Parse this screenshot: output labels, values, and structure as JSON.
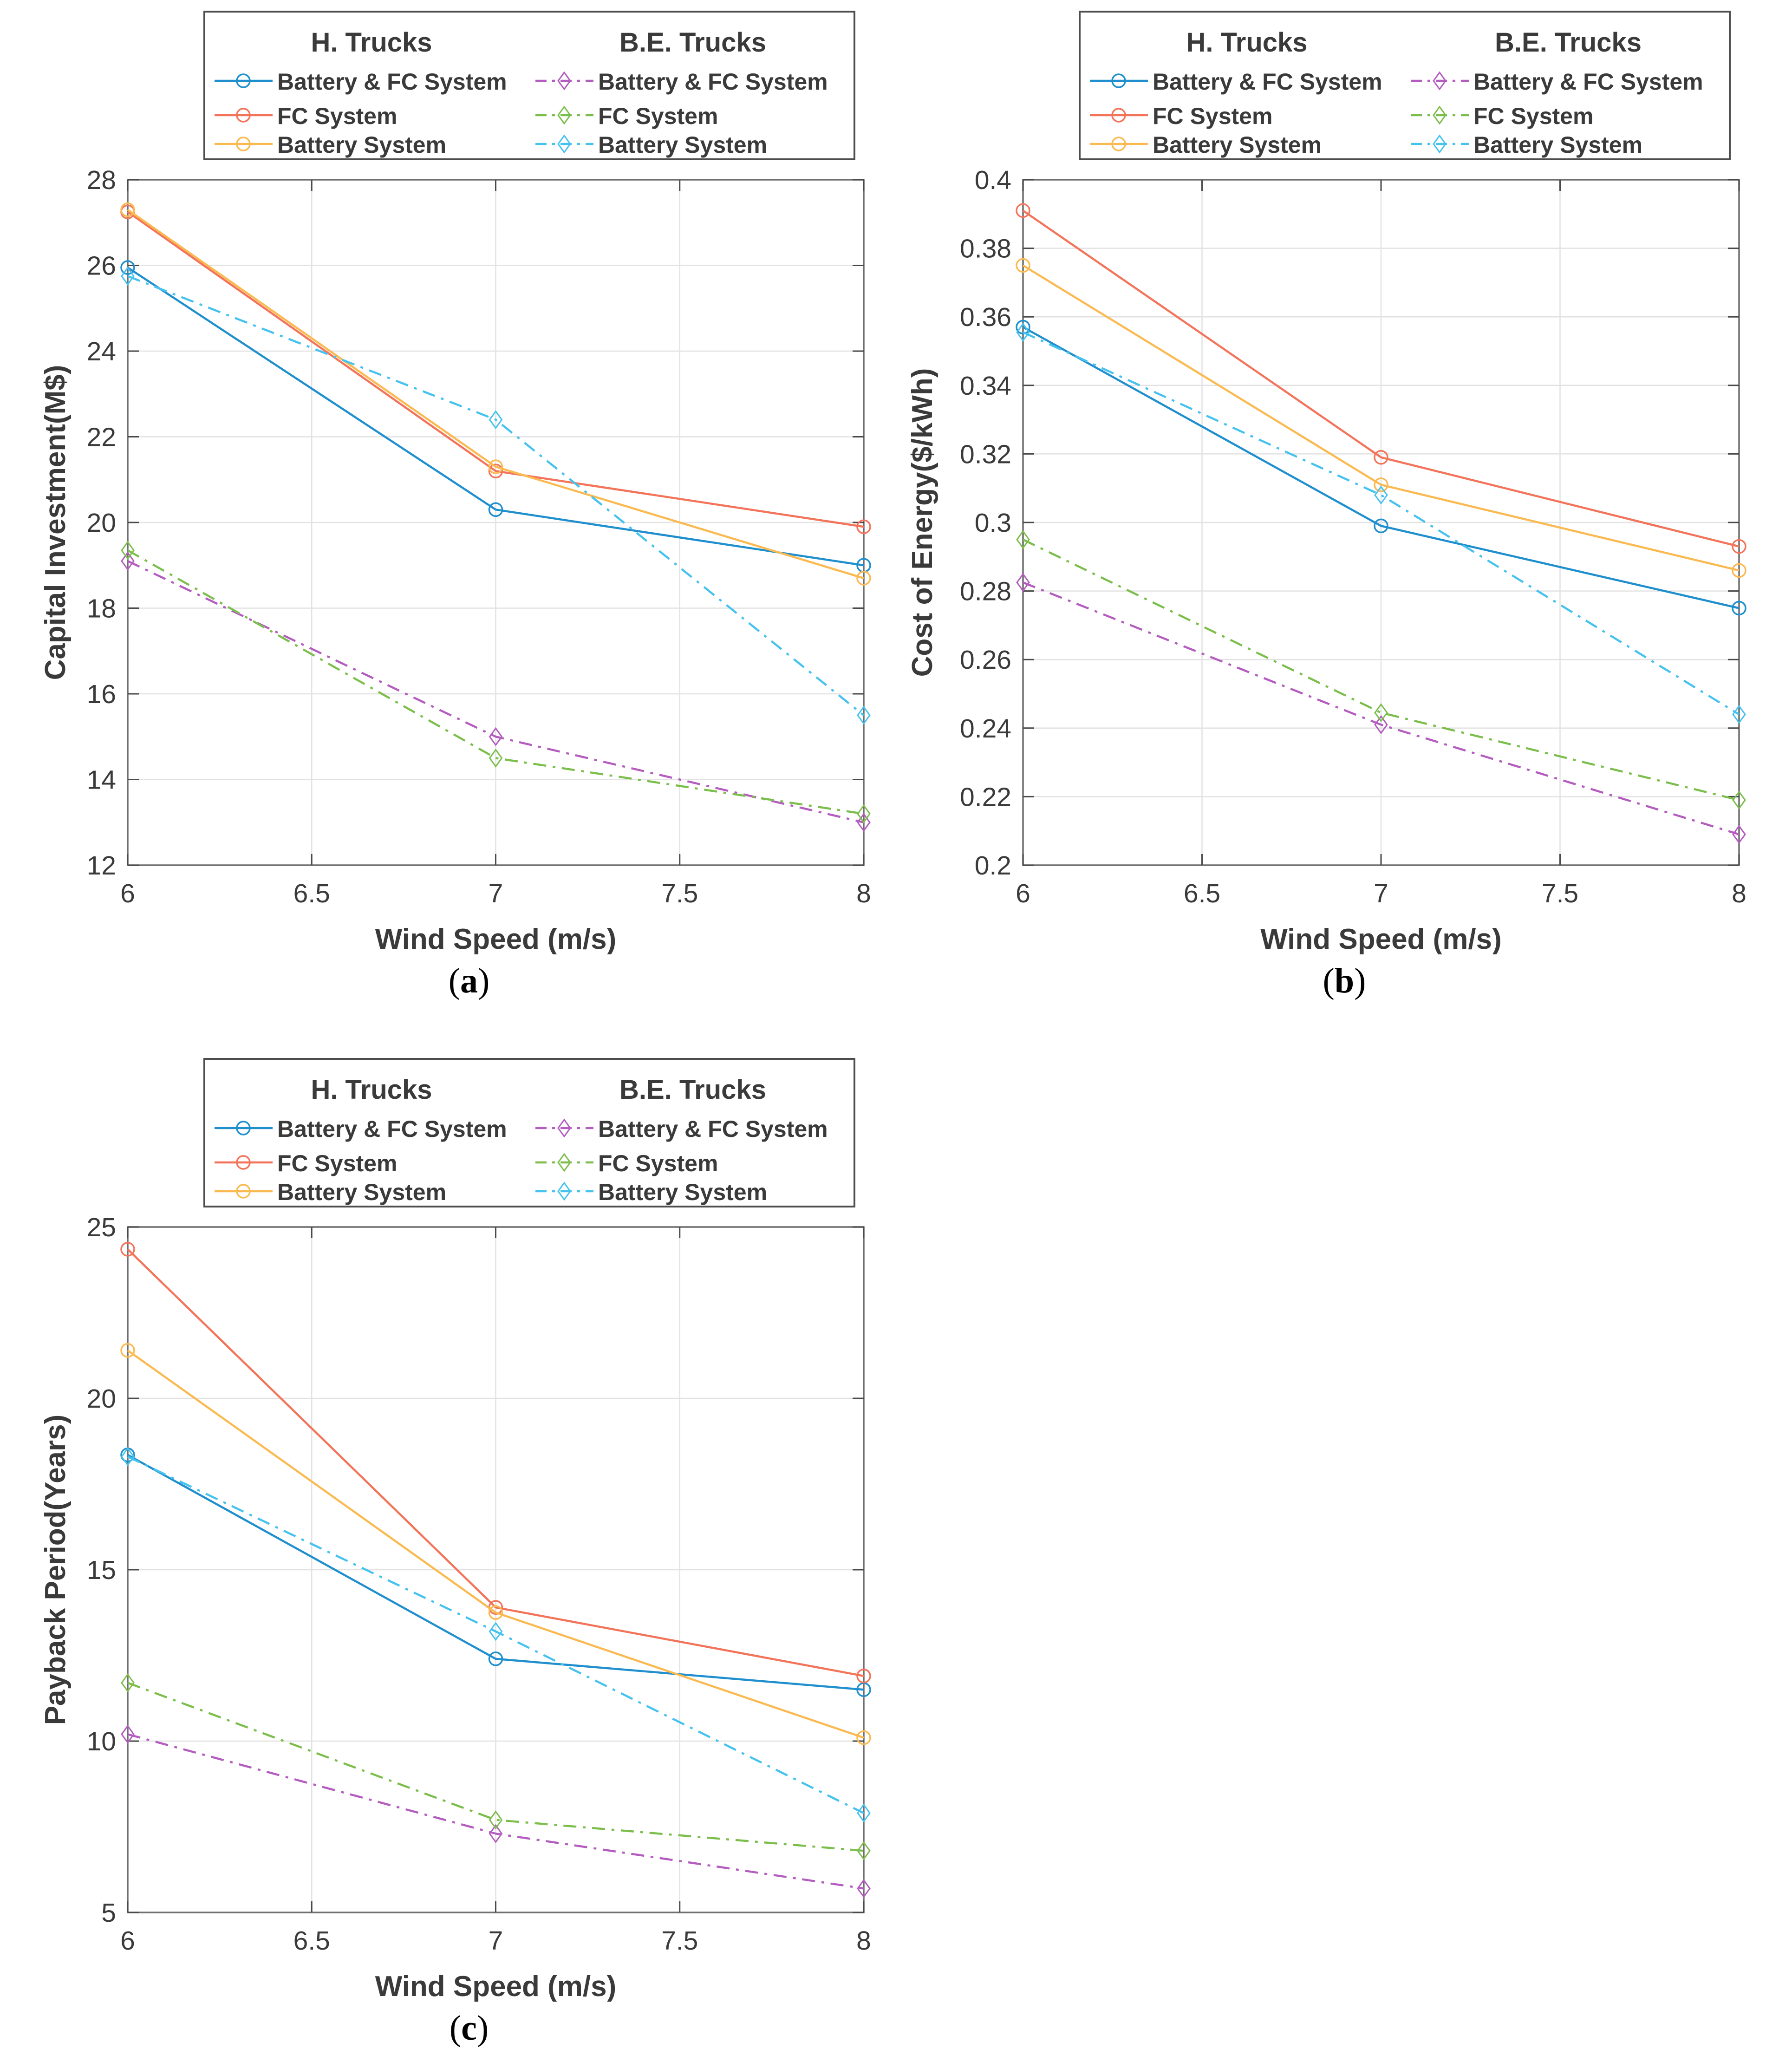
{
  "colors": {
    "background": "#FFFFFF",
    "grid": "#E2E2E2",
    "box": "#6F6F6F",
    "tick": "#4A4A4A",
    "text": "#3A3A3A",
    "legend_border": "#4D4D4D",
    "h_blue": "#1F8FCE",
    "h_coral": "#F3745A",
    "h_yellow": "#FBBA51",
    "be_purple": "#B45CBF",
    "be_green": "#7CBE4B",
    "be_cyan": "#45C2EE"
  },
  "legend": {
    "headers": [
      "H. Trucks",
      "B.E. Trucks"
    ],
    "items": [
      "Battery & FC System",
      "FC System",
      "Battery System"
    ]
  },
  "chart_data": [
    {
      "id": "a",
      "type": "line",
      "caption": "(a)",
      "xlabel": "Wind Speed (m/s)",
      "ylabel": "Capital Investment(M$)",
      "xlim": [
        6,
        8
      ],
      "ylim": [
        12,
        28
      ],
      "xticks": [
        6,
        6.5,
        7,
        7.5,
        8
      ],
      "xtick_labels": [
        "6",
        "6.5",
        "7",
        "7.5",
        "8"
      ],
      "yticks": [
        12,
        14,
        16,
        18,
        20,
        22,
        24,
        26,
        28
      ],
      "ytick_labels": [
        "12",
        "14",
        "16",
        "18",
        "20",
        "22",
        "24",
        "26",
        "28"
      ],
      "grid": true,
      "legend_position": "top",
      "x": [
        6,
        7,
        8
      ],
      "series": [
        {
          "group": "H. Trucks",
          "name": "Battery & FC System",
          "color": "#1F8FCE",
          "line": "solid",
          "marker": "circle",
          "values": [
            25.95,
            20.3,
            19.0
          ]
        },
        {
          "group": "H. Trucks",
          "name": "FC System",
          "color": "#F3745A",
          "line": "solid",
          "marker": "circle",
          "values": [
            27.25,
            21.2,
            19.9
          ]
        },
        {
          "group": "H. Trucks",
          "name": "Battery System",
          "color": "#FBBA51",
          "line": "solid",
          "marker": "circle",
          "values": [
            27.3,
            21.3,
            18.7
          ]
        },
        {
          "group": "B.E. Trucks",
          "name": "Battery & FC System",
          "color": "#B45CBF",
          "line": "dashdot",
          "marker": "diamond",
          "values": [
            19.1,
            15.0,
            13.0
          ]
        },
        {
          "group": "B.E. Trucks",
          "name": "FC System",
          "color": "#7CBE4B",
          "line": "dashdot",
          "marker": "diamond",
          "values": [
            19.35,
            14.5,
            13.2
          ]
        },
        {
          "group": "B.E. Trucks",
          "name": "Battery System",
          "color": "#45C2EE",
          "line": "dashdot",
          "marker": "diamond",
          "values": [
            25.75,
            22.4,
            15.5
          ]
        }
      ]
    },
    {
      "id": "b",
      "type": "line",
      "caption": "(b)",
      "xlabel": "Wind Speed (m/s)",
      "ylabel": "Cost of Energy($/kWh)",
      "xlim": [
        6,
        8
      ],
      "ylim": [
        0.2,
        0.4
      ],
      "xticks": [
        6,
        6.5,
        7,
        7.5,
        8
      ],
      "xtick_labels": [
        "6",
        "6.5",
        "7",
        "7.5",
        "8"
      ],
      "yticks": [
        0.2,
        0.22,
        0.24,
        0.26,
        0.28,
        0.3,
        0.32,
        0.34,
        0.36,
        0.38,
        0.4
      ],
      "ytick_labels": [
        "0.2",
        "0.22",
        "0.24",
        "0.26",
        "0.28",
        "0.3",
        "0.32",
        "0.34",
        "0.36",
        "0.38",
        "0.4"
      ],
      "grid": true,
      "legend_position": "top",
      "x": [
        6,
        7,
        8
      ],
      "series": [
        {
          "group": "H. Trucks",
          "name": "Battery & FC System",
          "color": "#1F8FCE",
          "line": "solid",
          "marker": "circle",
          "values": [
            0.357,
            0.299,
            0.275
          ]
        },
        {
          "group": "H. Trucks",
          "name": "FC System",
          "color": "#F3745A",
          "line": "solid",
          "marker": "circle",
          "values": [
            0.391,
            0.319,
            0.293
          ]
        },
        {
          "group": "H. Trucks",
          "name": "Battery System",
          "color": "#FBBA51",
          "line": "solid",
          "marker": "circle",
          "values": [
            0.375,
            0.311,
            0.286
          ]
        },
        {
          "group": "B.E. Trucks",
          "name": "Battery & FC System",
          "color": "#B45CBF",
          "line": "dashdot",
          "marker": "diamond",
          "values": [
            0.2825,
            0.241,
            0.209
          ]
        },
        {
          "group": "B.E. Trucks",
          "name": "FC System",
          "color": "#7CBE4B",
          "line": "dashdot",
          "marker": "diamond",
          "values": [
            0.295,
            0.2445,
            0.219
          ]
        },
        {
          "group": "B.E. Trucks",
          "name": "Battery System",
          "color": "#45C2EE",
          "line": "dashdot",
          "marker": "diamond",
          "values": [
            0.3555,
            0.308,
            0.244
          ]
        }
      ]
    },
    {
      "id": "c",
      "type": "line",
      "caption": "(c)",
      "xlabel": "Wind Speed (m/s)",
      "ylabel": "Payback Period(Years)",
      "xlim": [
        6,
        8
      ],
      "ylim": [
        5,
        25
      ],
      "xticks": [
        6,
        6.5,
        7,
        7.5,
        8
      ],
      "xtick_labels": [
        "6",
        "6.5",
        "7",
        "7.5",
        "8"
      ],
      "yticks": [
        5,
        10,
        15,
        20,
        25
      ],
      "ytick_labels": [
        "5",
        "10",
        "15",
        "20",
        "25"
      ],
      "grid": true,
      "legend_position": "top",
      "x": [
        6,
        7,
        8
      ],
      "series": [
        {
          "group": "H. Trucks",
          "name": "Battery & FC System",
          "color": "#1F8FCE",
          "line": "solid",
          "marker": "circle",
          "values": [
            18.35,
            12.4,
            11.5
          ]
        },
        {
          "group": "H. Trucks",
          "name": "FC System",
          "color": "#F3745A",
          "line": "solid",
          "marker": "circle",
          "values": [
            24.35,
            13.9,
            11.9
          ]
        },
        {
          "group": "H. Trucks",
          "name": "Battery System",
          "color": "#FBBA51",
          "line": "solid",
          "marker": "circle",
          "values": [
            21.4,
            13.75,
            10.1
          ]
        },
        {
          "group": "B.E. Trucks",
          "name": "Battery & FC System",
          "color": "#B45CBF",
          "line": "dashdot",
          "marker": "diamond",
          "values": [
            10.2,
            7.3,
            5.7
          ]
        },
        {
          "group": "B.E. Trucks",
          "name": "FC System",
          "color": "#7CBE4B",
          "line": "dashdot",
          "marker": "diamond",
          "values": [
            11.7,
            7.7,
            6.8
          ]
        },
        {
          "group": "B.E. Trucks",
          "name": "Battery System",
          "color": "#45C2EE",
          "line": "dashdot",
          "marker": "diamond",
          "values": [
            18.3,
            13.2,
            7.9
          ]
        }
      ]
    }
  ]
}
